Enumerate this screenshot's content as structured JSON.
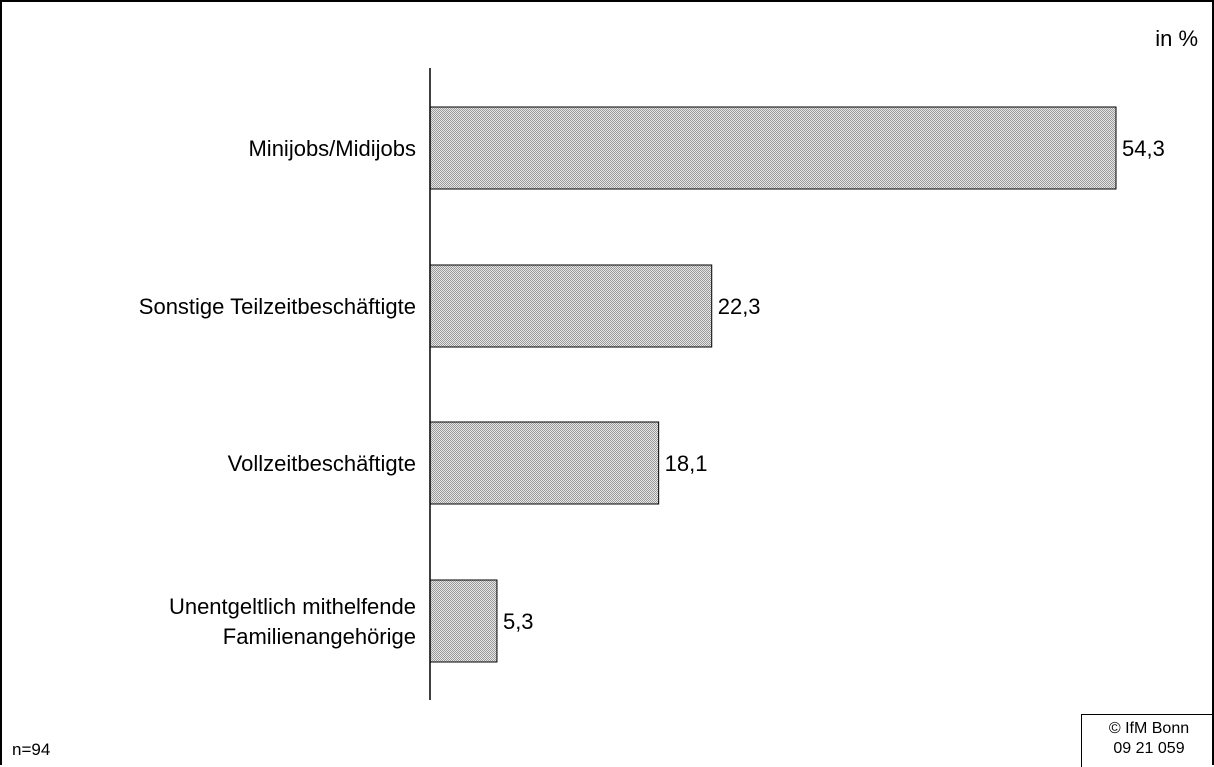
{
  "unit_label": "in %",
  "sample_note": "n=94",
  "credit": {
    "line1": "© IfM Bonn",
    "line2": "09 21 059"
  },
  "colors": {
    "bar_fill": "#d6d6d6",
    "bar_stroke": "#000000",
    "axis": "#000000"
  },
  "chart_data": {
    "type": "bar",
    "orientation": "horizontal",
    "categories": [
      [
        "Minijobs/Midijobs"
      ],
      [
        "Sonstige Teilzeitbeschäftigte"
      ],
      [
        "Vollzeitbeschäftigte"
      ],
      [
        "Unentgeltlich mithelfende",
        "Familienangehörige"
      ]
    ],
    "values": [
      54.3,
      22.3,
      18.1,
      5.3
    ],
    "value_labels": [
      "54,3",
      "22,3",
      "18,1",
      "5,3"
    ],
    "unit": "in %",
    "title": "",
    "xlabel": "",
    "ylabel": "",
    "xlim": [
      0,
      60
    ],
    "grid": false
  }
}
